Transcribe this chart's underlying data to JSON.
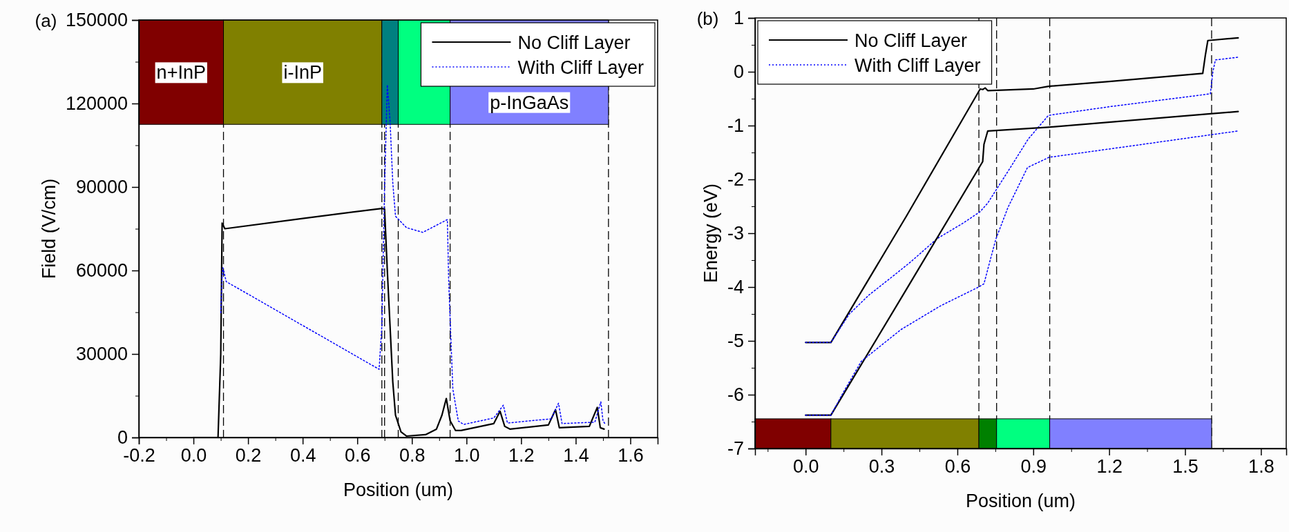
{
  "chart_data": [
    {
      "type": "line",
      "title": "(a)",
      "xlabel": "Position (um)",
      "ylabel": "Field (V/cm)",
      "xlim": [
        -0.2,
        1.7
      ],
      "ylim": [
        0,
        150000
      ],
      "xticks": [
        {
          "value": -0.2,
          "label": "-0.2"
        },
        {
          "value": -0.1,
          "label": null
        },
        {
          "value": 0,
          "label": "0.0"
        },
        {
          "value": 0.1,
          "label": null
        },
        {
          "value": 0.2,
          "label": "0.2"
        },
        {
          "value": 0.3,
          "label": null
        },
        {
          "value": 0.4,
          "label": "0.4"
        },
        {
          "value": 0.5,
          "label": null
        },
        {
          "value": 0.6,
          "label": "0.6"
        },
        {
          "value": 0.7,
          "label": null
        },
        {
          "value": 0.8,
          "label": "0.8"
        },
        {
          "value": 0.9,
          "label": null
        },
        {
          "value": 1.0,
          "label": "1.0"
        },
        {
          "value": 1.1,
          "label": null
        },
        {
          "value": 1.2,
          "label": "1.2"
        },
        {
          "value": 1.3,
          "label": null
        },
        {
          "value": 1.4,
          "label": "1.4"
        },
        {
          "value": 1.5,
          "label": null
        },
        {
          "value": 1.6,
          "label": "1.6"
        }
      ],
      "yticks": [
        0,
        {
          "value": 15000,
          "label": null
        },
        30000,
        {
          "value": 45000,
          "label": null
        },
        60000,
        {
          "value": 75000,
          "label": null
        },
        90000,
        {
          "value": 105000,
          "label": null
        },
        120000,
        {
          "value": 135000,
          "label": null
        },
        150000
      ],
      "legend": "top right",
      "series": [
        {
          "name": "No Cliff Layer",
          "color": "#000000",
          "line_style": "solid",
          "x": [
            0,
            0.09,
            0.1,
            0.105,
            0.115,
            0.4,
            0.69,
            0.7,
            0.71,
            0.72,
            0.73,
            0.74,
            0.76,
            0.78,
            0.85,
            0.89,
            0.91,
            0.926,
            0.94,
            0.96,
            0.98,
            1.1,
            1.123,
            1.14,
            1.16,
            1.3,
            1.326,
            1.34,
            1.45,
            1.479,
            1.49,
            1.504
          ],
          "values": [
            0,
            0,
            30000,
            77000,
            75000,
            78700,
            82300,
            82000,
            60000,
            40000,
            20000,
            8000,
            2000,
            500,
            1000,
            3000,
            8000,
            14000,
            6000,
            2500,
            2500,
            5000,
            9400,
            4000,
            3000,
            4500,
            10000,
            3500,
            4000,
            10800,
            3500,
            3000
          ]
        },
        {
          "name": "With Cliff Layer",
          "color": "#0000ff",
          "line_style": "dotted",
          "x": [
            0.1,
            0.105,
            0.108,
            0.12,
            0.68,
            0.69,
            0.7,
            0.71,
            0.72,
            0.73,
            0.74,
            0.78,
            0.84,
            0.93,
            0.935,
            0.95,
            0.97,
            0.99,
            1.1,
            1.135,
            1.15,
            1.31,
            1.337,
            1.35,
            1.47,
            1.492,
            1.5,
            1.51
          ],
          "values": [
            44800,
            58000,
            61000,
            56000,
            24500,
            40000,
            90000,
            126700,
            113800,
            91600,
            79500,
            75400,
            73700,
            78300,
            55400,
            17400,
            5900,
            4700,
            7000,
            11600,
            5200,
            6700,
            12300,
            5000,
            5500,
            12800,
            6000,
            4500
          ]
        }
      ],
      "bands": [
        {
          "axis": "x",
          "from": -0.2,
          "to": 0.11,
          "color": "#800000",
          "label": "n+InP"
        },
        {
          "axis": "x",
          "from": 0.11,
          "to": 0.69,
          "color": "#808000",
          "label": "i-InP"
        },
        {
          "axis": "x",
          "from": 0.69,
          "to": 0.75,
          "color": "#008080"
        },
        {
          "axis": "x",
          "from": 0.75,
          "to": 0.94,
          "color": "#00ff80"
        },
        {
          "axis": "x",
          "from": 0.94,
          "to": 1.52,
          "color": "#8080ff",
          "label": "p-InGaAs"
        }
      ],
      "ref_lines": [
        {
          "axis": "x",
          "value": 0.11,
          "line_style": "dashed",
          "color": "#000000"
        },
        {
          "axis": "x",
          "value": 0.69,
          "line_style": "dashed",
          "color": "#000000"
        },
        {
          "axis": "x",
          "value": 0.7,
          "line_style": "dashed",
          "color": "#000000"
        },
        {
          "axis": "x",
          "value": 0.75,
          "line_style": "dashed",
          "color": "#000000"
        },
        {
          "axis": "x",
          "value": 0.94,
          "line_style": "dashed",
          "color": "#000000"
        },
        {
          "axis": "x",
          "value": 1.52,
          "line_style": "dashed",
          "color": "#000000"
        }
      ]
    },
    {
      "type": "line",
      "title": "(b)",
      "xlabel": "Position (um)",
      "ylabel": "Energy (eV)",
      "xlim": [
        -0.2,
        1.9
      ],
      "ylim": [
        -7,
        1
      ],
      "xticks": [
        {
          "value": -0.15,
          "label": null
        },
        {
          "value": 0,
          "label": "0.0"
        },
        {
          "value": 0.15,
          "label": null
        },
        {
          "value": 0.3,
          "label": "0.3"
        },
        {
          "value": 0.45,
          "label": null
        },
        {
          "value": 0.6,
          "label": "0.6"
        },
        {
          "value": 0.75,
          "label": null
        },
        {
          "value": 0.9,
          "label": "0.9"
        },
        {
          "value": 1.05,
          "label": null
        },
        {
          "value": 1.2,
          "label": "1.2"
        },
        {
          "value": 1.35,
          "label": null
        },
        {
          "value": 1.5,
          "label": "1.5"
        },
        {
          "value": 1.65,
          "label": null
        },
        {
          "value": 1.8,
          "label": "1.8"
        }
      ],
      "yticks": [
        -7,
        {
          "value": -6.5,
          "label": null
        },
        -6,
        {
          "value": -5.5,
          "label": null
        },
        -5,
        {
          "value": -4.5,
          "label": null
        },
        -4,
        {
          "value": -3.5,
          "label": null
        },
        -3,
        {
          "value": -2.5,
          "label": null
        },
        -2,
        {
          "value": -1.5,
          "label": null
        },
        -1,
        {
          "value": -0.5,
          "label": null
        },
        0,
        {
          "value": 0.5,
          "label": null
        },
        1
      ],
      "legend": "top left",
      "series": [
        {
          "name": "No Cliff Layer",
          "color": "#000000",
          "line_style": "solid",
          "x": [
            0,
            0.1,
            0.4,
            0.69,
            0.7,
            0.71,
            0.72,
            0.9,
            0.96,
            1.2,
            1.57,
            1.58,
            1.59,
            1.71
          ],
          "values": [
            -5.03,
            -5.03,
            -2.67,
            -0.32,
            -0.33,
            -0.3,
            -0.35,
            -0.32,
            -0.27,
            -0.18,
            -0.03,
            0.3,
            0.58,
            0.63
          ]
        },
        {
          "name": "With Cliff Layer",
          "color": "#0000ff",
          "line_style": "dotted",
          "x": [
            0,
            0.1,
            0.173,
            0.25,
            0.35,
            0.416,
            0.52,
            0.62,
            0.69,
            0.72,
            0.8,
            0.88,
            0.96,
            1.2,
            1.6,
            1.61,
            1.62,
            1.71
          ],
          "values": [
            -5.03,
            -5.03,
            -4.5,
            -4.15,
            -3.78,
            -3.53,
            -3.1,
            -2.82,
            -2.6,
            -2.44,
            -1.85,
            -1.25,
            -0.81,
            -0.65,
            -0.41,
            0,
            0.22,
            0.27
          ]
        },
        {
          "color": "#000000",
          "line_style": "solid",
          "x": [
            0,
            0.1,
            0.4,
            0.7,
            0.705,
            0.72,
            0.96,
            1.6,
            1.71
          ],
          "values": [
            -6.38,
            -6.38,
            -4.03,
            -1.67,
            -1.35,
            -1.1,
            -1.03,
            -0.78,
            -0.74
          ]
        },
        {
          "color": "#0000ff",
          "line_style": "dotted",
          "x": [
            0,
            0.1,
            0.15,
            0.22,
            0.377,
            0.533,
            0.684,
            0.705,
            0.728,
            0.752,
            0.8,
            0.877,
            0.962,
            1.3,
            1.603,
            1.71
          ],
          "values": [
            -6.38,
            -6.38,
            -5.95,
            -5.38,
            -4.79,
            -4.35,
            -4.0,
            -3.94,
            -3.53,
            -3.11,
            -2.52,
            -1.78,
            -1.59,
            -1.37,
            -1.17,
            -1.1
          ]
        }
      ],
      "bands": [
        {
          "axis": "x",
          "from": -0.2,
          "to": 0.1,
          "color": "#800000"
        },
        {
          "axis": "x",
          "from": 0.1,
          "to": 0.685,
          "color": "#808000"
        },
        {
          "axis": "x",
          "from": 0.685,
          "to": 0.755,
          "color": "#008000"
        },
        {
          "axis": "x",
          "from": 0.755,
          "to": 0.965,
          "color": "#00ff80"
        },
        {
          "axis": "x",
          "from": 0.965,
          "to": 1.605,
          "color": "#8080ff"
        }
      ],
      "ref_lines": [
        {
          "axis": "x",
          "value": 0.685,
          "line_style": "dashed",
          "color": "#000000"
        },
        {
          "axis": "x",
          "value": 0.755,
          "line_style": "dashed",
          "color": "#000000"
        },
        {
          "axis": "x",
          "value": 0.965,
          "line_style": "dashed",
          "color": "#000000"
        },
        {
          "axis": "x",
          "value": 1.605,
          "line_style": "dashed",
          "color": "#000000"
        }
      ]
    }
  ]
}
